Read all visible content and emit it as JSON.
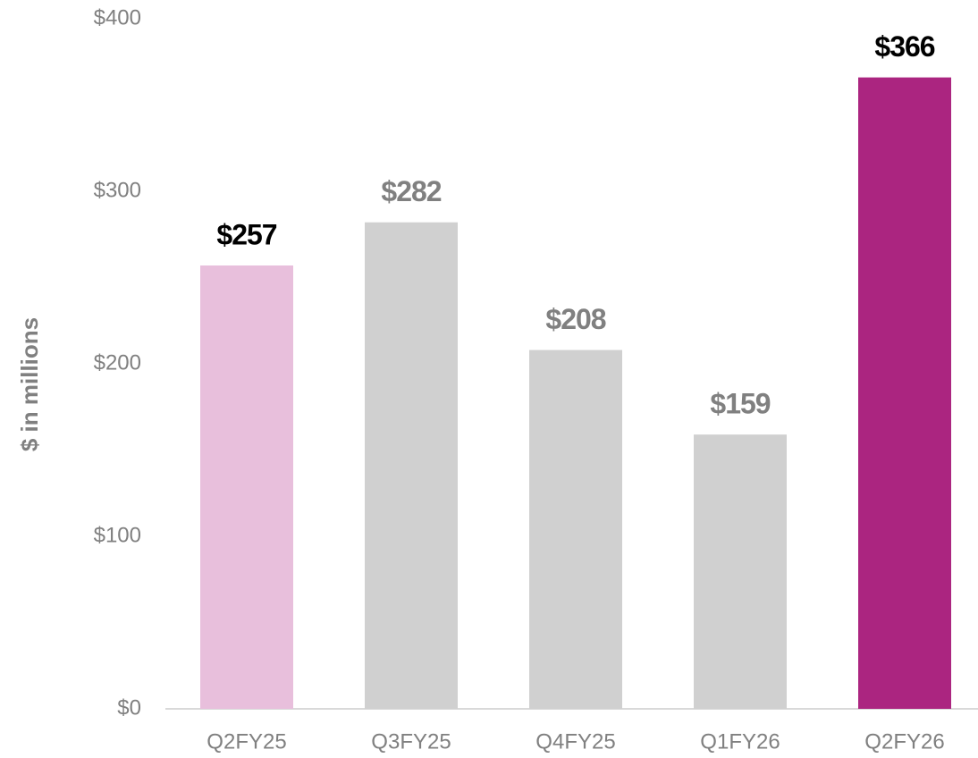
{
  "chart_data": {
    "type": "bar",
    "y_label": "$ in millions",
    "categories": [
      "Q2FY25",
      "Q3FY25",
      "Q4FY25",
      "Q1FY26",
      "Q2FY26"
    ],
    "values": [
      257,
      282,
      208,
      159,
      366
    ],
    "value_labels": [
      "$257",
      "$282",
      "$208",
      "$159",
      "$366"
    ],
    "colors": [
      "#e8bfdc",
      "#d0d0d0",
      "#d0d0d0",
      "#d0d0d0",
      "#ab2580"
    ],
    "value_label_colors": [
      "#000000",
      "#808080",
      "#808080",
      "#808080",
      "#000000"
    ],
    "ylim": [
      0,
      400
    ],
    "yticks": [
      {
        "value": 0,
        "label": "$0"
      },
      {
        "value": 100,
        "label": "$100"
      },
      {
        "value": 200,
        "label": "$200"
      },
      {
        "value": 300,
        "label": "$300"
      },
      {
        "value": 400,
        "label": "$400"
      }
    ],
    "grid": false
  }
}
